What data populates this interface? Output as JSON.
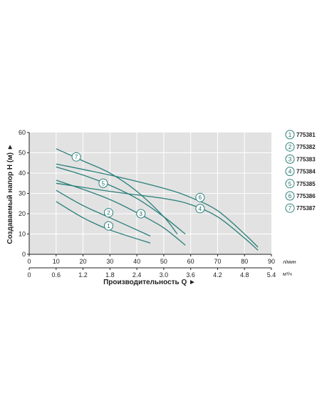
{
  "chart_data": {
    "type": "line",
    "xlabel": "Производительность Q ►",
    "ylabel": "Создаваемый напор H (м) ►",
    "x_unit_primary": "л/мин",
    "x_unit_secondary": "м³/ч",
    "xlim": [
      0,
      90
    ],
    "ylim": [
      0,
      60
    ],
    "x_ticks": [
      "0",
      "10",
      "20",
      "30",
      "40",
      "50",
      "60",
      "70",
      "80",
      "90"
    ],
    "x2_ticks": [
      "0",
      "0.6",
      "1.2",
      "1.8",
      "2.4",
      "3.0",
      "3.6",
      "4.2",
      "4.8",
      "5.4"
    ],
    "y_ticks": [
      "0",
      "10",
      "20",
      "30",
      "40",
      "50",
      "60"
    ],
    "grid": true,
    "legend_position": "right",
    "colors": {
      "curve": "#2a7f7a",
      "grid": "#ffffff",
      "plot_bg": "#e2e2e2",
      "marker_stroke": "#2a7f7a"
    },
    "series": [
      {
        "name": "775381",
        "marker": "1",
        "label_at": [
          29.5,
          14
        ],
        "x": [
          10,
          20,
          30,
          45
        ],
        "y": [
          26,
          18,
          12,
          5.5
        ]
      },
      {
        "name": "775382",
        "marker": "2",
        "label_at": [
          29.5,
          20.5
        ],
        "x": [
          10,
          20,
          30,
          45
        ],
        "y": [
          31.5,
          24,
          18,
          9
        ]
      },
      {
        "name": "775383",
        "marker": "3",
        "label_at": [
          41.5,
          20
        ],
        "x": [
          10,
          20,
          30,
          40,
          50,
          58
        ],
        "y": [
          36.5,
          32,
          27,
          20.5,
          13,
          4.5
        ]
      },
      {
        "name": "775384",
        "marker": "4",
        "label_at": [
          63.5,
          22.5
        ],
        "x": [
          10,
          30,
          50,
          60,
          70,
          80,
          85
        ],
        "y": [
          35,
          31,
          27.5,
          24.5,
          18.5,
          8,
          2
        ]
      },
      {
        "name": "775385",
        "marker": "5",
        "label_at": [
          27.5,
          35
        ],
        "x": [
          10,
          20,
          30,
          40,
          50,
          58
        ],
        "y": [
          43,
          39,
          34,
          27.5,
          18.5,
          10
        ]
      },
      {
        "name": "775386",
        "marker": "6",
        "label_at": [
          63.5,
          28
        ],
        "x": [
          10,
          30,
          50,
          60,
          70,
          80,
          85
        ],
        "y": [
          44.5,
          39,
          32.5,
          28,
          21.5,
          10,
          3.5
        ]
      },
      {
        "name": "775387",
        "marker": "7",
        "label_at": [
          17.5,
          48
        ],
        "x": [
          10,
          20,
          30,
          40,
          50,
          55
        ],
        "y": [
          52,
          46,
          40,
          31,
          18.5,
          10
        ]
      }
    ]
  }
}
